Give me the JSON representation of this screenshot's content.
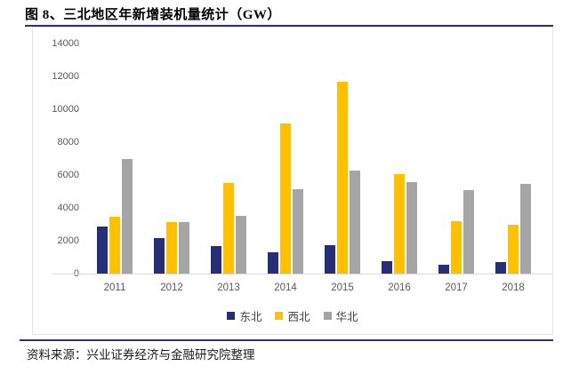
{
  "figure": {
    "title": "图 8、三北地区年新增装机量统计（GW）",
    "source": "资料来源：兴业证券经济与金融研究院整理"
  },
  "colors": {
    "rule": "#2f3272",
    "axis_text": "#595959",
    "axis_line": "#d9d9d9",
    "frame_border": "#e4e4e4",
    "dongbei": "#272e78",
    "xibei": "#ffc000",
    "huabei": "#a5a5a5"
  },
  "chart_data": {
    "type": "bar",
    "title": "三北地区年新增装机量统计（GW）",
    "categories": [
      "2011",
      "2012",
      "2013",
      "2014",
      "2015",
      "2016",
      "2017",
      "2018"
    ],
    "series": [
      {
        "key": "dongbei",
        "name": "东北",
        "color": "#272e78",
        "values": [
          2850,
          2180,
          1650,
          1280,
          1750,
          780,
          560,
          700
        ]
      },
      {
        "key": "xibei",
        "name": "西北",
        "color": "#ffc000",
        "values": [
          3450,
          3150,
          5500,
          9130,
          11690,
          6030,
          3210,
          2950
        ]
      },
      {
        "key": "huabei",
        "name": "华北",
        "color": "#a5a5a5",
        "values": [
          7000,
          3150,
          3500,
          5140,
          6250,
          5590,
          5080,
          5480
        ]
      }
    ],
    "xlabel": "",
    "ylabel": "",
    "ylim": [
      0,
      14000
    ],
    "yticks": [
      0,
      2000,
      4000,
      6000,
      8000,
      10000,
      12000,
      14000
    ],
    "grid": false,
    "legend_position": "bottom"
  }
}
